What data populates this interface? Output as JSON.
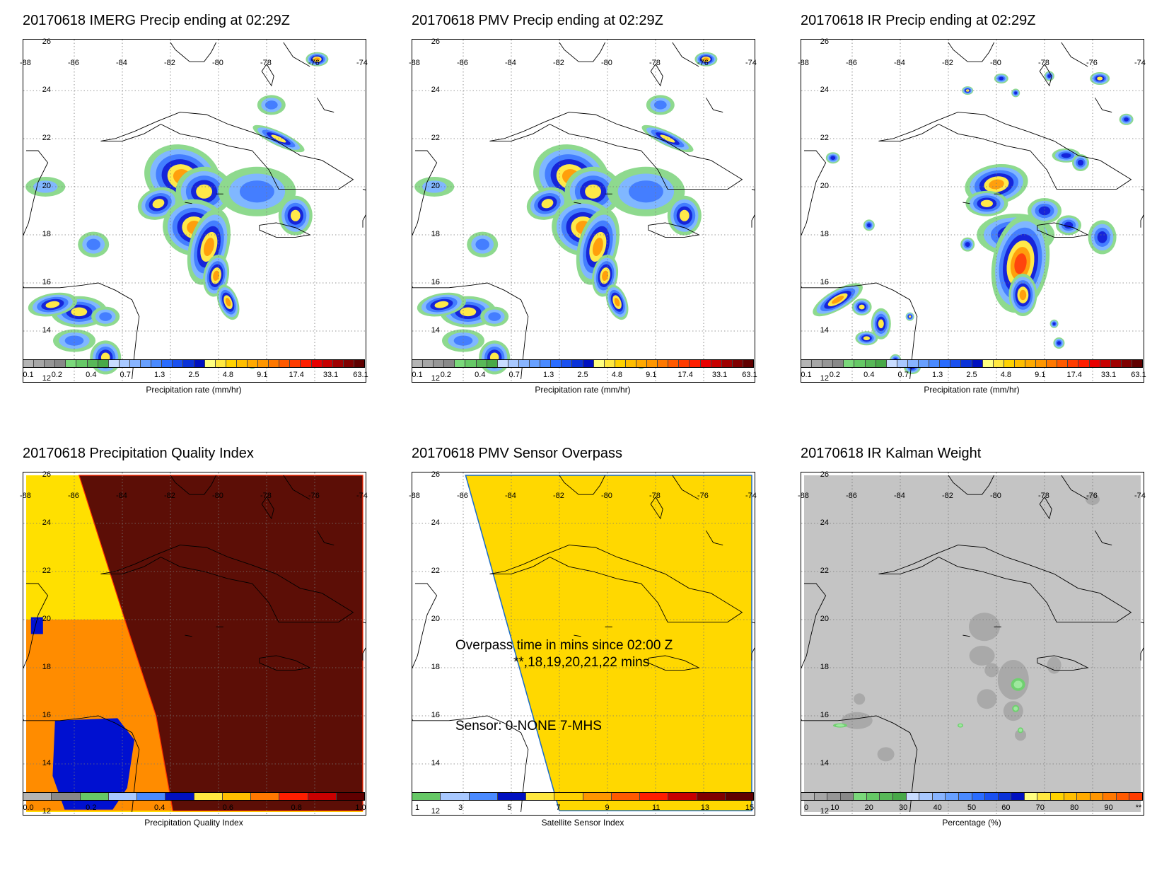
{
  "lon_labels": [
    "-88",
    "-86",
    "-84",
    "-82",
    "-80",
    "-78",
    "-76",
    "-74"
  ],
  "lat_labels": [
    "26",
    "24",
    "22",
    "20",
    "18",
    "16",
    "14",
    "12"
  ],
  "panels": [
    {
      "id": "imerg",
      "title": "20170618 IMERG Precip ending at 02:29Z",
      "kind": "precip",
      "colorbar": {
        "label": "Precipitation rate (mm/hr)",
        "ticks": [
          "0.1",
          "0.2",
          "0.4",
          "0.7",
          "1.3",
          "2.5",
          "4.8",
          "9.1",
          "17.4",
          "33.1",
          "63.1"
        ],
        "colors": [
          "#b4b4b4",
          "#a6a6a6",
          "#969696",
          "#888888",
          "#7ad87a",
          "#66c866",
          "#58b858",
          "#48a848",
          "#c8dcff",
          "#a8c8ff",
          "#88b4ff",
          "#68a0ff",
          "#4a8aff",
          "#2a6cff",
          "#1a50f0",
          "#0a32d8",
          "#0010c0",
          "#ffff80",
          "#ffe840",
          "#ffd200",
          "#ffbe00",
          "#ffaa00",
          "#ff9600",
          "#ff7800",
          "#ff5a00",
          "#ff3c00",
          "#ff1e00",
          "#e80000",
          "#c80000",
          "#a00000",
          "#800000",
          "#600000"
        ]
      }
    },
    {
      "id": "pmv",
      "title": "20170618 PMV Precip ending at 02:29Z",
      "kind": "precip",
      "colorbar": {
        "label": "Precipitation rate (mm/hr)",
        "ticks": [
          "0.1",
          "0.2",
          "0.4",
          "0.7",
          "1.3",
          "2.5",
          "4.8",
          "9.1",
          "17.4",
          "33.1",
          "63.1"
        ],
        "colors": [
          "#b4b4b4",
          "#a6a6a6",
          "#969696",
          "#888888",
          "#7ad87a",
          "#66c866",
          "#58b858",
          "#48a848",
          "#c8dcff",
          "#a8c8ff",
          "#88b4ff",
          "#68a0ff",
          "#4a8aff",
          "#2a6cff",
          "#1a50f0",
          "#0a32d8",
          "#0010c0",
          "#ffff80",
          "#ffe840",
          "#ffd200",
          "#ffbe00",
          "#ffaa00",
          "#ff9600",
          "#ff7800",
          "#ff5a00",
          "#ff3c00",
          "#ff1e00",
          "#e80000",
          "#c80000",
          "#a00000",
          "#800000",
          "#600000"
        ]
      }
    },
    {
      "id": "ir",
      "title": "20170618 IR Precip ending at 02:29Z",
      "kind": "precip",
      "colorbar": {
        "label": "Precipitation rate (mm/hr)",
        "ticks": [
          "0.1",
          "0.2",
          "0.4",
          "0.7",
          "1.3",
          "2.5",
          "4.8",
          "9.1",
          "17.4",
          "33.1",
          "63.1"
        ],
        "colors": [
          "#b4b4b4",
          "#a6a6a6",
          "#969696",
          "#888888",
          "#7ad87a",
          "#66c866",
          "#58b858",
          "#48a848",
          "#c8dcff",
          "#a8c8ff",
          "#88b4ff",
          "#68a0ff",
          "#4a8aff",
          "#2a6cff",
          "#1a50f0",
          "#0a32d8",
          "#0010c0",
          "#ffff80",
          "#ffe840",
          "#ffd200",
          "#ffbe00",
          "#ffaa00",
          "#ff9600",
          "#ff7800",
          "#ff5a00",
          "#ff3c00",
          "#ff1e00",
          "#e80000",
          "#c80000",
          "#a00000",
          "#800000",
          "#600000"
        ]
      }
    },
    {
      "id": "pqi",
      "title": "20170618 Precipitation Quality Index",
      "kind": "quality",
      "colorbar": {
        "label": "Precipitation Quality Index",
        "ticks": [
          "0.0",
          "0.2",
          "0.4",
          "0.6",
          "0.8",
          "1.0"
        ],
        "colors": [
          "#b4b4b4",
          "#888888",
          "#66c866",
          "#a8c8ff",
          "#4a8aff",
          "#0010c0",
          "#ffe840",
          "#ffbe00",
          "#ff7800",
          "#ff1e00",
          "#c80000",
          "#600000"
        ]
      }
    },
    {
      "id": "overpass",
      "title": "20170618 PMV Sensor Overpass",
      "kind": "overpass",
      "overlay": {
        "line1": "Overpass time in mins since 02:00 Z",
        "line2": "**,18,19,20,21,22 mins",
        "line3": "Sensor:   0-NONE  7-MHS"
      },
      "colorbar": {
        "label": "Satellite Sensor Index",
        "ticks": [
          "1",
          "3",
          "5",
          "7",
          "9",
          "11",
          "13",
          "15"
        ],
        "colors": [
          "#66c866",
          "#a8c8ff",
          "#4a8aff",
          "#0010c0",
          "#ffe840",
          "#ffd200",
          "#ff9600",
          "#ff5a00",
          "#ff1e00",
          "#c80000",
          "#800000",
          "#600000"
        ]
      }
    },
    {
      "id": "kalman",
      "title": "20170618 IR Kalman Weight",
      "kind": "kalman",
      "colorbar": {
        "label": "Percentage (%)",
        "ticks": [
          "0",
          "10",
          "20",
          "30",
          "40",
          "50",
          "60",
          "70",
          "80",
          "90",
          "**"
        ],
        "colors": [
          "#b4b4b4",
          "#a6a6a6",
          "#969696",
          "#888888",
          "#7ad87a",
          "#66c866",
          "#58b858",
          "#48a848",
          "#c8dcff",
          "#a8c8ff",
          "#88b4ff",
          "#68a0ff",
          "#4a8aff",
          "#2a6cff",
          "#1a50f0",
          "#0a32d8",
          "#0010c0",
          "#ffff80",
          "#ffe840",
          "#ffd200",
          "#ffbe00",
          "#ffaa00",
          "#ff9600",
          "#ff7800",
          "#ff5a00",
          "#ff3c00"
        ]
      }
    }
  ]
}
